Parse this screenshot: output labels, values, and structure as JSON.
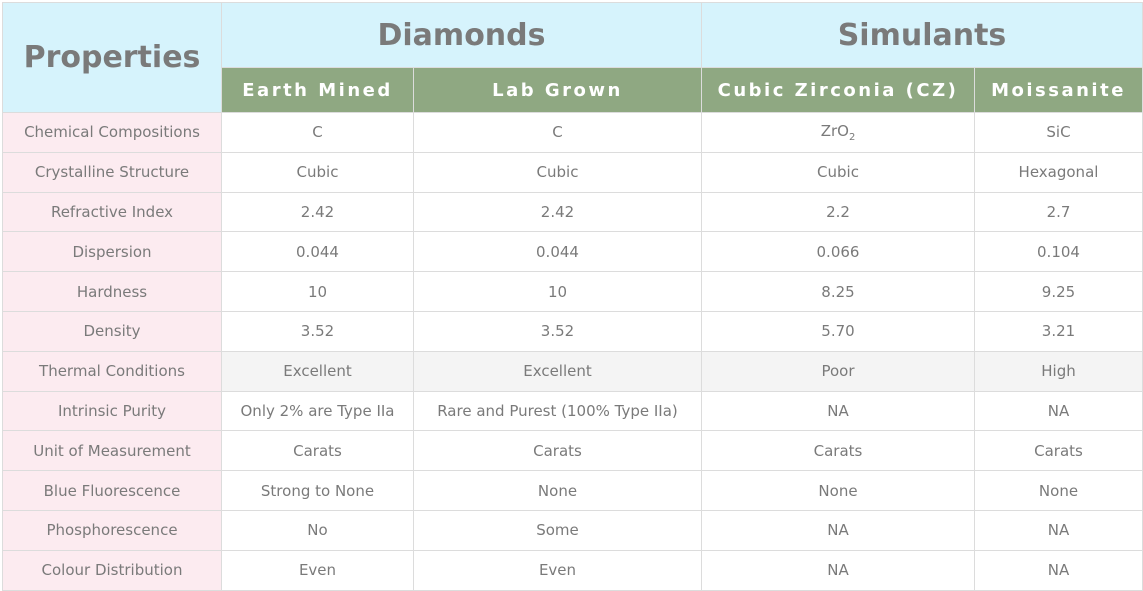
{
  "header": {
    "properties": "Properties",
    "groups": [
      "Diamonds",
      "Simulants"
    ],
    "columns": [
      "Earth Mined",
      "Lab Grown",
      "Cubic Zirconia (CZ)",
      "Moissanite"
    ]
  },
  "colors": {
    "group_header_bg": "#d6f3fc",
    "column_header_bg": "#8fa882",
    "property_bg": "#fcebf0",
    "highlight_row_bg": "#f4f4f4"
  },
  "rows": [
    {
      "label": "Chemical Compositions",
      "values": [
        "C",
        "C",
        "ZrO",
        "SiC"
      ],
      "cz_subscript": "2"
    },
    {
      "label": "Crystalline Structure",
      "values": [
        "Cubic",
        "Cubic",
        "Cubic",
        "Hexagonal"
      ]
    },
    {
      "label": "Refractive Index",
      "values": [
        "2.42",
        "2.42",
        "2.2",
        "2.7"
      ]
    },
    {
      "label": "Dispersion",
      "values": [
        "0.044",
        "0.044",
        "0.066",
        "0.104"
      ]
    },
    {
      "label": "Hardness",
      "values": [
        "10",
        "10",
        "8.25",
        "9.25"
      ]
    },
    {
      "label": "Density",
      "values": [
        "3.52",
        "3.52",
        "5.70",
        "3.21"
      ]
    },
    {
      "label": "Thermal Conditions",
      "values": [
        "Excellent",
        "Excellent",
        "Poor",
        "High"
      ]
    },
    {
      "label": "Intrinsic Purity",
      "values": [
        "Only 2% are Type IIa",
        "Rare and Purest (100% Type IIa)",
        "NA",
        "NA"
      ]
    },
    {
      "label": "Unit of Measurement",
      "values": [
        "Carats",
        "Carats",
        "Carats",
        "Carats"
      ]
    },
    {
      "label": "Blue Fluorescence",
      "values": [
        "Strong to None",
        "None",
        "None",
        "None"
      ]
    },
    {
      "label": "Phosphorescence",
      "values": [
        "No",
        "Some",
        "NA",
        "NA"
      ]
    },
    {
      "label": "Colour Distribution",
      "values": [
        "Even",
        "Even",
        "NA",
        "NA"
      ]
    }
  ]
}
